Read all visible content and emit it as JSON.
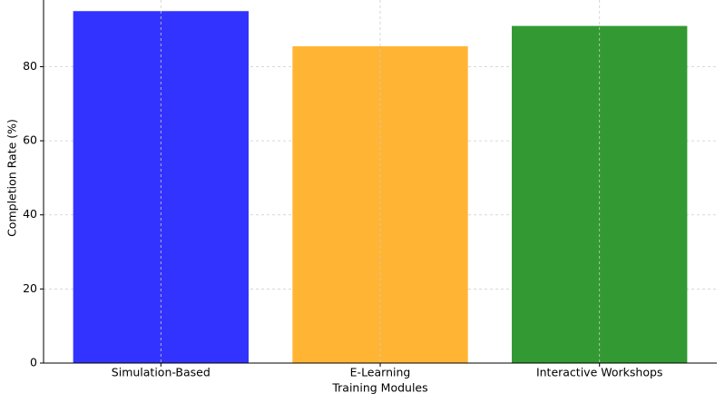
{
  "chart_data": {
    "type": "bar",
    "x_label": "Training Modules",
    "y_label": "Completion Rate (%)",
    "categories": [
      "Simulation-Based",
      "E-Learning",
      "Interactive Workshops"
    ],
    "values": [
      95,
      85.5,
      91
    ],
    "colors": [
      "#3333ff",
      "#ffb533",
      "#339933"
    ],
    "ylim": [
      0,
      98
    ],
    "yticks": [
      0,
      20,
      40,
      60,
      80
    ],
    "grid": true
  }
}
